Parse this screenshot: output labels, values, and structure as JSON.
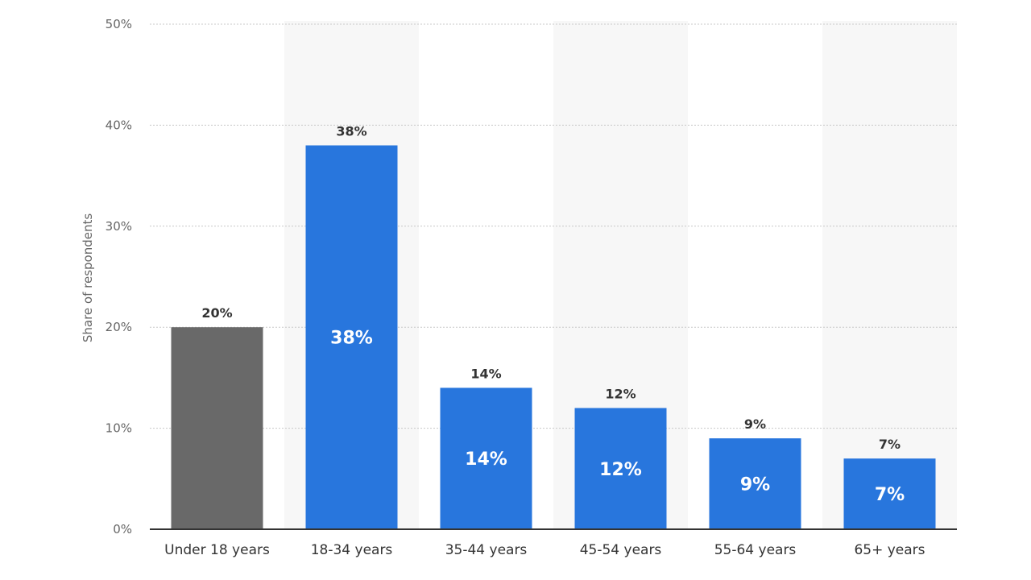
{
  "chart_data": {
    "type": "bar",
    "categories": [
      "Under 18 years",
      "18-34 years",
      "35-44 years",
      "45-54 years",
      "55-64 years",
      "65+ years"
    ],
    "values": [
      20,
      38,
      14,
      12,
      9,
      7
    ],
    "value_labels": [
      "20%",
      "38%",
      "14%",
      "12%",
      "9%",
      "7%"
    ],
    "inside_labels": [
      "",
      "38%",
      "14%",
      "12%",
      "9%",
      "7%"
    ],
    "bar_colors": [
      "#696969",
      "#2876dd",
      "#2876dd",
      "#2876dd",
      "#2876dd",
      "#2876dd"
    ],
    "title": "",
    "xlabel": "",
    "ylabel": "Share of respondents",
    "ylim": [
      0,
      50
    ],
    "yticks": [
      0,
      10,
      20,
      30,
      40,
      50
    ],
    "ytick_labels": [
      "0%",
      "10%",
      "20%",
      "30%",
      "40%",
      "50%"
    ],
    "grid": true,
    "alternating_band_color": "#f7f7f7",
    "gridline_color": "#c8c8c8",
    "axis_color": "#333333"
  }
}
